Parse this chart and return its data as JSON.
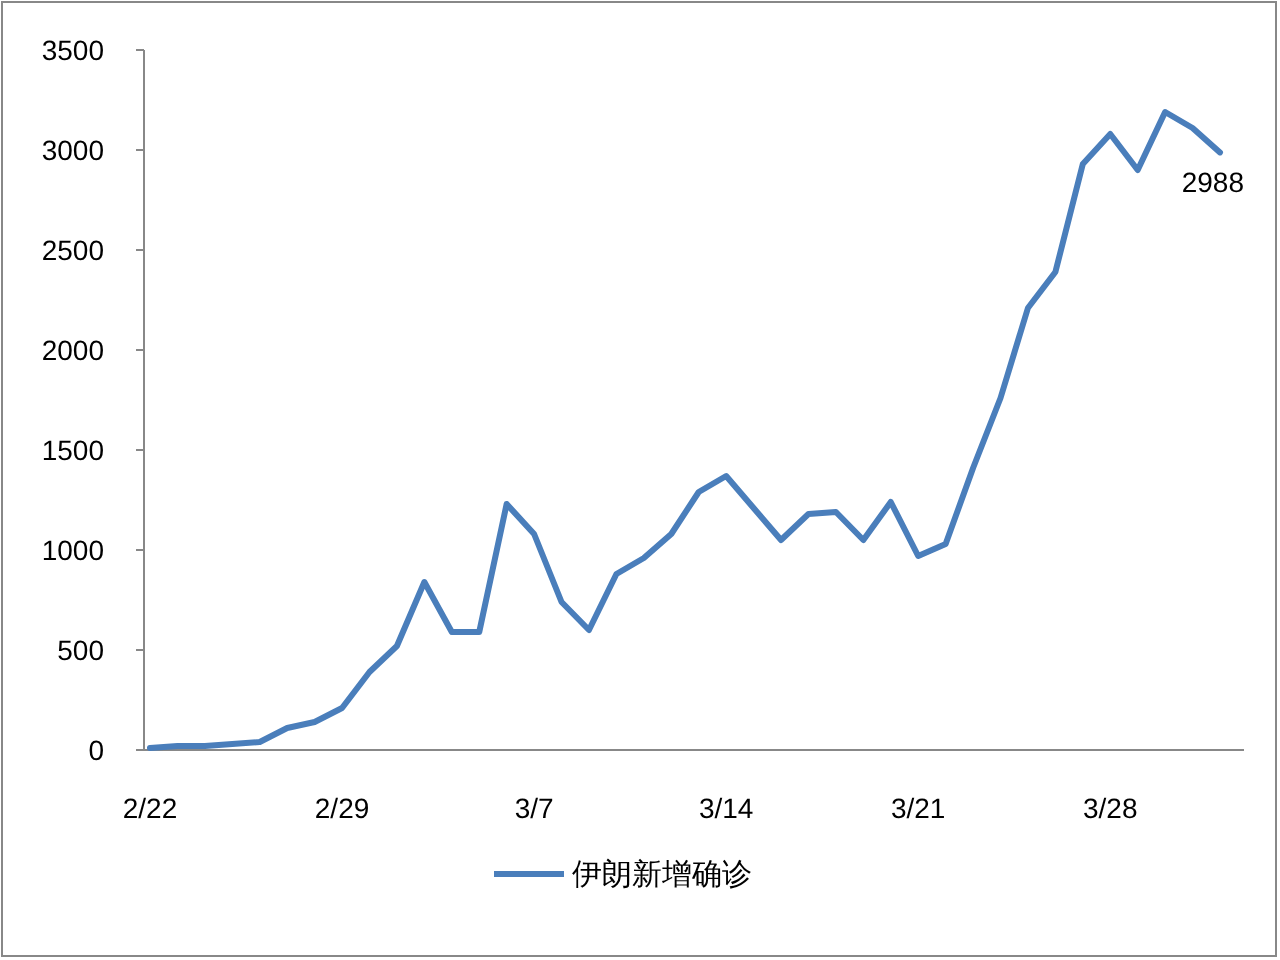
{
  "chart_data": {
    "type": "line",
    "categories": [
      "2/22",
      null,
      null,
      null,
      null,
      null,
      null,
      "2/29",
      null,
      null,
      null,
      null,
      null,
      null,
      "3/7",
      null,
      null,
      null,
      null,
      null,
      null,
      "3/14",
      null,
      null,
      null,
      null,
      null,
      null,
      "3/21",
      null,
      null,
      null,
      null,
      null,
      null,
      "3/28",
      null,
      null,
      null,
      null
    ],
    "series": [
      {
        "name": "伊朗新增确诊",
        "color": "#4a7ebb",
        "values": [
          10,
          20,
          20,
          30,
          40,
          110,
          140,
          210,
          390,
          520,
          840,
          590,
          590,
          1230,
          1080,
          740,
          600,
          880,
          960,
          1080,
          1290,
          1370,
          1210,
          1050,
          1180,
          1190,
          1050,
          1240,
          970,
          1030,
          1410,
          1760,
          2210,
          2390,
          2930,
          3080,
          2900,
          3190,
          3110,
          2988
        ],
        "value_labels": [
          null,
          null,
          null,
          null,
          null,
          null,
          null,
          null,
          null,
          null,
          null,
          null,
          null,
          null,
          null,
          null,
          null,
          null,
          null,
          null,
          null,
          null,
          null,
          null,
          null,
          null,
          null,
          null,
          null,
          null,
          null,
          null,
          null,
          null,
          null,
          null,
          null,
          null,
          null,
          "2988"
        ]
      }
    ],
    "ylim": [
      0,
      3500
    ],
    "yticks": [
      0,
      500,
      1000,
      1500,
      2000,
      2500,
      3000,
      3500
    ],
    "legend": "bottom"
  }
}
